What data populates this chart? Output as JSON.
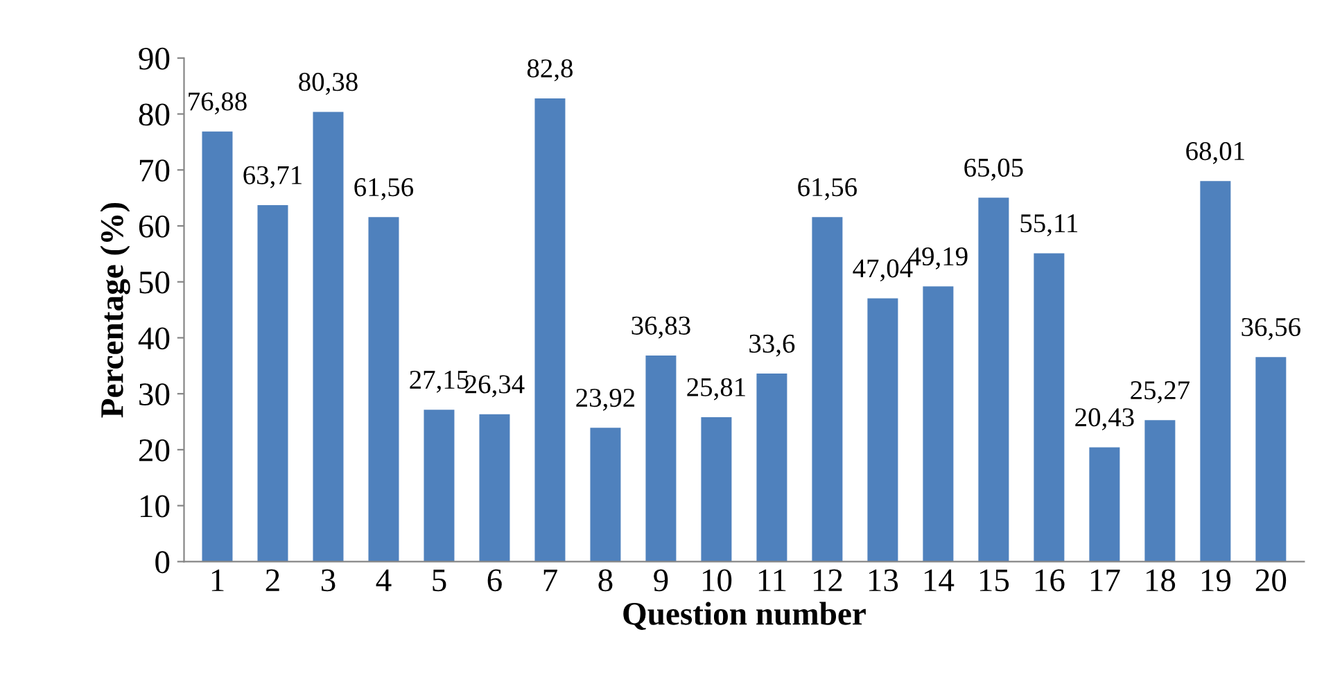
{
  "chart_data": {
    "type": "bar",
    "xlabel": "Question number",
    "ylabel": "Percentage (%)",
    "categories": [
      "1",
      "2",
      "3",
      "4",
      "5",
      "6",
      "7",
      "8",
      "9",
      "10",
      "11",
      "12",
      "13",
      "14",
      "15",
      "16",
      "17",
      "18",
      "19",
      "20"
    ],
    "values": [
      76.88,
      63.71,
      80.38,
      61.56,
      27.15,
      26.34,
      82.8,
      23.92,
      36.83,
      25.81,
      33.6,
      61.56,
      47.04,
      49.19,
      65.05,
      55.11,
      20.43,
      25.27,
      68.01,
      36.56
    ],
    "value_labels": [
      "76,88",
      "63,71",
      "80,38",
      "61,56",
      "27,15",
      "26,34",
      "82,8",
      "23,92",
      "36,83",
      "25,81",
      "33,6",
      "61,56",
      "47,04",
      "49,19",
      "65,05",
      "55,11",
      "20,43",
      "25,27",
      "68,01",
      "36,56"
    ],
    "color": "#4f81bd",
    "ylim": [
      0,
      90
    ],
    "yticks": [
      0,
      10,
      20,
      30,
      40,
      50,
      60,
      70,
      80,
      90
    ],
    "grid": false,
    "legend": false
  }
}
